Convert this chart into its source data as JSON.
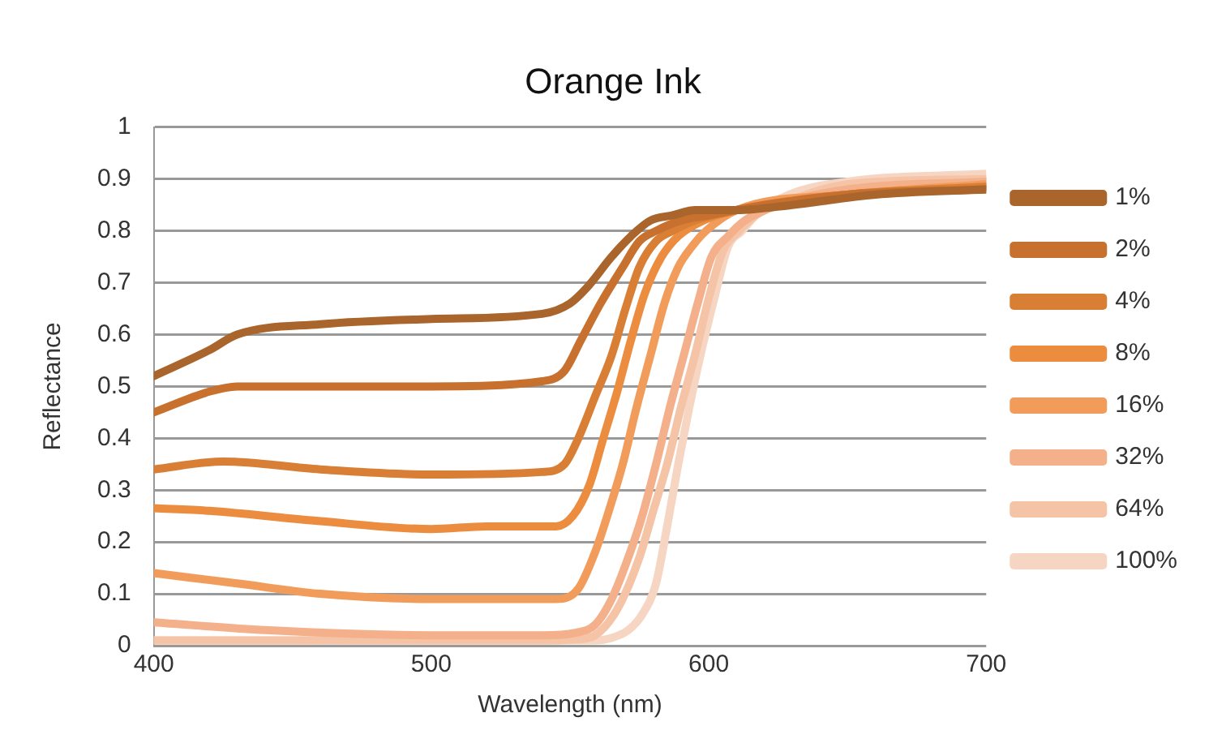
{
  "chart_data": {
    "type": "line",
    "title": "Orange Ink",
    "xlabel": "Wavelength (nm)",
    "ylabel": "Reflectance",
    "xlim": [
      400,
      700
    ],
    "xticks": [
      400,
      500,
      600,
      700
    ],
    "ylim": [
      0,
      1
    ],
    "yticks": [
      0,
      0.1,
      0.2,
      0.3,
      0.4,
      0.5,
      0.6,
      0.7,
      0.8,
      0.9,
      1
    ],
    "grid": "y",
    "legend": "right",
    "marker": "none",
    "line_style": "solid",
    "series": [
      {
        "name": "1%",
        "color": "#a9652b",
        "x": [
          400,
          420,
          430,
          460,
          500,
          540,
          550,
          556,
          565,
          572,
          579,
          587,
          595,
          610,
          630,
          660,
          700
        ],
        "values": [
          0.52,
          0.57,
          0.6,
          0.62,
          0.63,
          0.64,
          0.66,
          0.69,
          0.75,
          0.79,
          0.82,
          0.83,
          0.84,
          0.84,
          0.85,
          0.87,
          0.88
        ]
      },
      {
        "name": "2%",
        "color": "#c8712f",
        "x": [
          400,
          420,
          430,
          460,
          500,
          540,
          548,
          554,
          561,
          569,
          575,
          581,
          590,
          600,
          620,
          650,
          700
        ],
        "values": [
          0.45,
          0.49,
          0.5,
          0.5,
          0.5,
          0.51,
          0.53,
          0.59,
          0.66,
          0.73,
          0.78,
          0.8,
          0.82,
          0.83,
          0.85,
          0.87,
          0.88
        ]
      },
      {
        "name": "4%",
        "color": "#d97f35",
        "x": [
          400,
          425,
          460,
          500,
          540,
          548,
          553,
          559,
          565,
          570,
          575,
          581,
          587,
          595,
          610,
          650,
          700
        ],
        "values": [
          0.34,
          0.355,
          0.34,
          0.33,
          0.335,
          0.35,
          0.4,
          0.48,
          0.56,
          0.65,
          0.73,
          0.78,
          0.8,
          0.82,
          0.84,
          0.87,
          0.885
        ]
      },
      {
        "name": "8%",
        "color": "#ec8c3f",
        "x": [
          400,
          420,
          460,
          500,
          520,
          545,
          551,
          557,
          562,
          567,
          572,
          577,
          583,
          589,
          598,
          610,
          650,
          700
        ],
        "values": [
          0.265,
          0.26,
          0.24,
          0.225,
          0.23,
          0.23,
          0.25,
          0.31,
          0.4,
          0.49,
          0.59,
          0.68,
          0.75,
          0.79,
          0.82,
          0.84,
          0.87,
          0.885
        ]
      },
      {
        "name": "16%",
        "color": "#f29c5c",
        "x": [
          400,
          430,
          460,
          500,
          545,
          553,
          559,
          564,
          569,
          574,
          579,
          584,
          589,
          594,
          599,
          610,
          650,
          700
        ],
        "values": [
          0.14,
          0.12,
          0.1,
          0.09,
          0.09,
          0.11,
          0.18,
          0.26,
          0.35,
          0.46,
          0.56,
          0.66,
          0.73,
          0.77,
          0.8,
          0.84,
          0.87,
          0.89
        ]
      },
      {
        "name": "32%",
        "color": "#f4b08a",
        "x": [
          400,
          440,
          500,
          540,
          552,
          559,
          565,
          571,
          576,
          581,
          586,
          591,
          596,
          601,
          607,
          613,
          625,
          650,
          700
        ],
        "values": [
          0.045,
          0.03,
          0.02,
          0.02,
          0.025,
          0.04,
          0.09,
          0.17,
          0.25,
          0.35,
          0.46,
          0.56,
          0.66,
          0.75,
          0.79,
          0.82,
          0.85,
          0.88,
          0.895
        ]
      },
      {
        "name": "64%",
        "color": "#f5c3a5",
        "x": [
          400,
          450,
          500,
          540,
          552,
          559,
          567,
          575,
          580,
          585,
          590,
          595,
          600,
          605,
          611,
          617,
          630,
          650,
          700
        ],
        "values": [
          0.01,
          0.01,
          0.01,
          0.01,
          0.012,
          0.02,
          0.07,
          0.17,
          0.26,
          0.35,
          0.46,
          0.56,
          0.67,
          0.76,
          0.8,
          0.83,
          0.86,
          0.89,
          0.9
        ]
      },
      {
        "name": "100%",
        "color": "#f7d5c3",
        "x": [
          400,
          450,
          500,
          540,
          559,
          565,
          571,
          576,
          581,
          585,
          589,
          593,
          597,
          602,
          607,
          612,
          617,
          629,
          650,
          700
        ],
        "values": [
          0.01,
          0.01,
          0.01,
          0.01,
          0.01,
          0.015,
          0.03,
          0.06,
          0.12,
          0.23,
          0.35,
          0.46,
          0.56,
          0.67,
          0.77,
          0.8,
          0.83,
          0.87,
          0.895,
          0.91
        ]
      }
    ]
  }
}
